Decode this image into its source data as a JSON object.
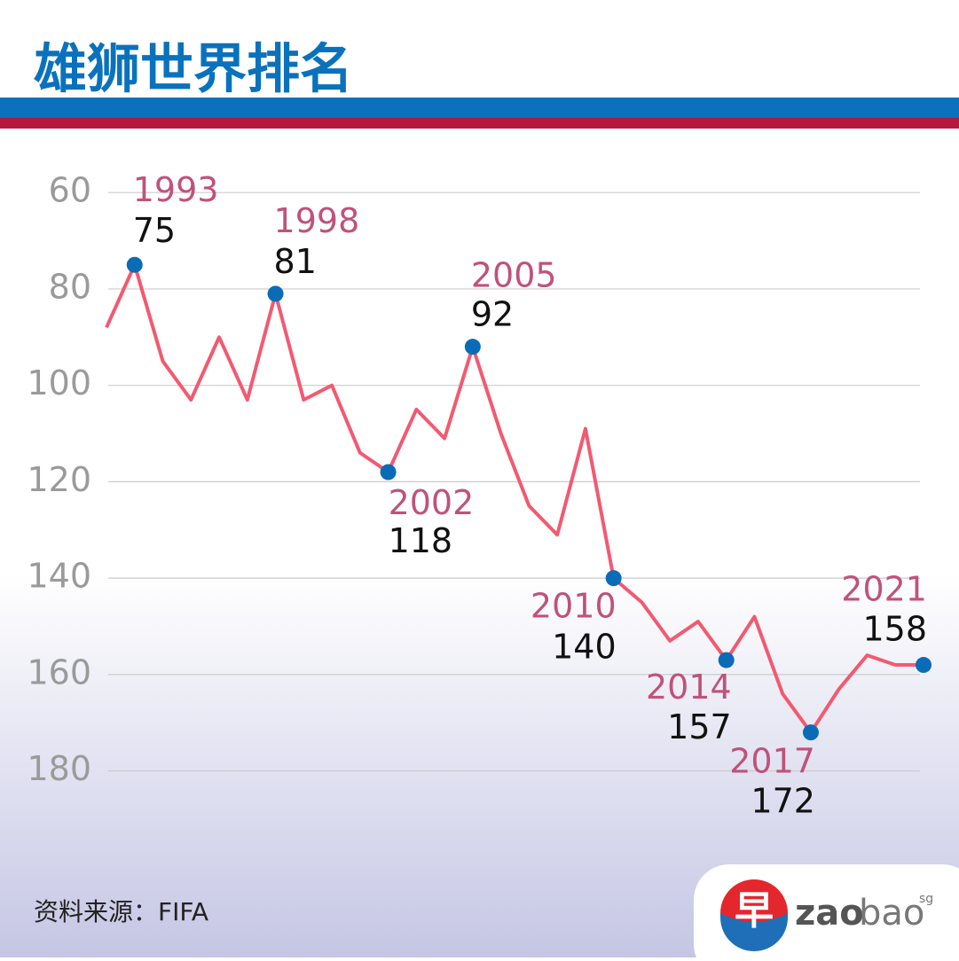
{
  "chart_data": {
    "type": "line",
    "title": "雄狮世界排名",
    "source": "资料来源：FIFA",
    "categories": [
      null,
      "1993",
      null,
      null,
      null,
      null,
      "1998",
      null,
      null,
      null,
      "2002",
      null,
      null,
      "2005",
      null,
      null,
      null,
      null,
      "2010",
      null,
      null,
      null,
      "2014",
      null,
      null,
      "2017",
      null,
      null,
      null,
      "2021"
    ],
    "values": [
      88,
      75,
      95,
      103,
      90,
      103,
      81,
      103,
      100,
      114,
      118,
      105,
      111,
      92,
      110,
      125,
      131,
      109,
      140,
      145,
      153,
      149,
      157,
      148,
      164,
      172,
      163,
      156,
      158,
      158
    ],
    "color": "#f25a70",
    "marker_color": "#0a6cb7",
    "ylim": [
      55,
      190
    ],
    "y_inverted": true,
    "yticks": [
      60,
      80,
      100,
      120,
      140,
      160,
      180
    ],
    "grid": true
  },
  "logo": {
    "mark": "早",
    "text": "zao",
    "text2": "bao",
    "superscript": "sg"
  }
}
